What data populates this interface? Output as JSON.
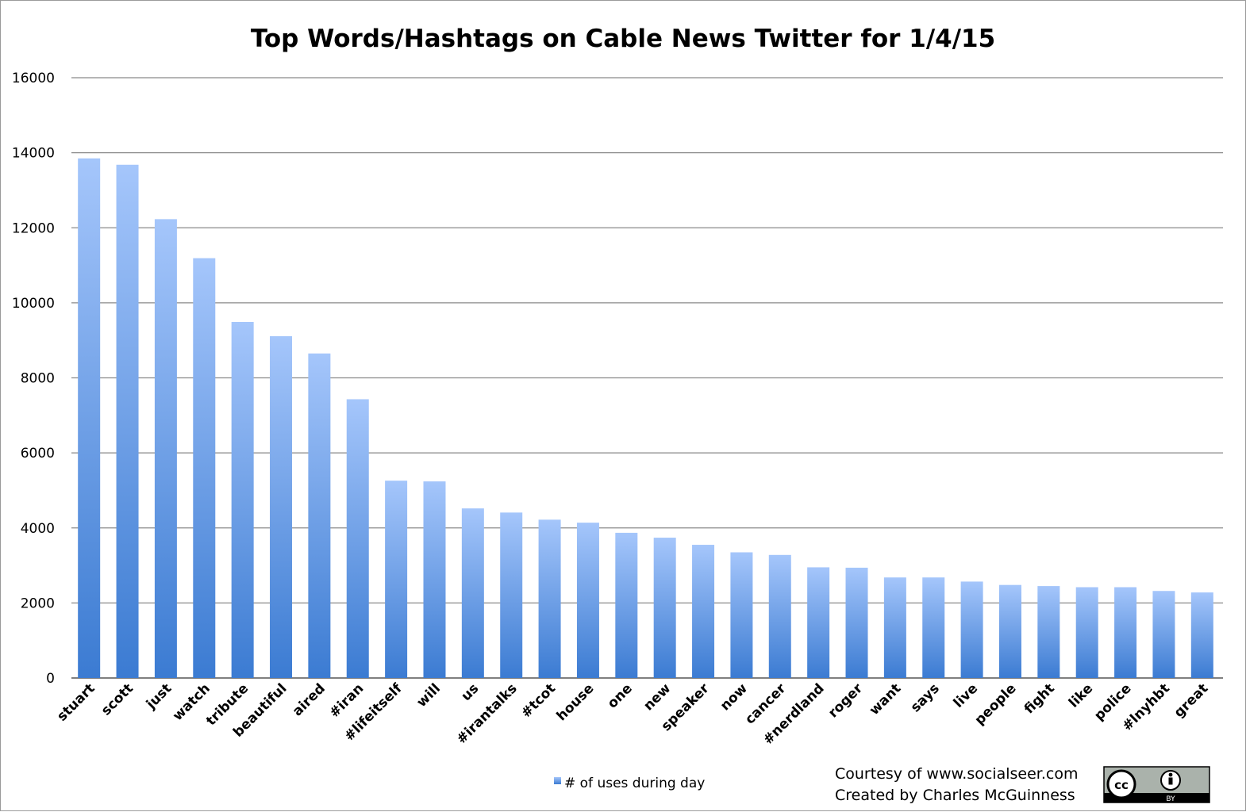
{
  "chart_data": {
    "type": "bar",
    "title": "Top Words/Hashtags on Cable News Twitter for 1/4/15",
    "xlabel": "",
    "ylabel": "",
    "ylim": [
      0,
      16000
    ],
    "yticks": [
      0,
      2000,
      4000,
      6000,
      8000,
      10000,
      12000,
      14000,
      16000
    ],
    "grid": true,
    "legend_position": "bottom",
    "colors": {
      "bar_top": "#a5c6fb",
      "bar_bottom": "#3b7bd2",
      "grid": "#8a8a8a",
      "axis": "#555555"
    },
    "categories": [
      "stuart",
      "scott",
      "just",
      "watch",
      "tribute",
      "beautiful",
      "aired",
      "#iran",
      "#lifeitself",
      "will",
      "us",
      "#irantalks",
      "#tcot",
      "house",
      "one",
      "new",
      "speaker",
      "now",
      "cancer",
      "#nerdland",
      "roger",
      "want",
      "says",
      "live",
      "people",
      "fight",
      "like",
      "police",
      "#lnyhbt",
      "great"
    ],
    "series": [
      {
        "name": "# of uses during day",
        "values": [
          13850,
          13680,
          12230,
          11190,
          9490,
          9110,
          8650,
          7430,
          5260,
          5240,
          4520,
          4410,
          4220,
          4140,
          3870,
          3740,
          3550,
          3350,
          3280,
          2950,
          2940,
          2680,
          2680,
          2570,
          2480,
          2450,
          2420,
          2420,
          2320,
          2280
        ]
      }
    ]
  },
  "credits": {
    "line1": "Courtesy of www.socialseer.com",
    "line2": "Created by Charles McGuinness"
  },
  "license_badge": {
    "text": "BY",
    "icons": [
      "cc-icon",
      "attribution-person-icon"
    ]
  }
}
